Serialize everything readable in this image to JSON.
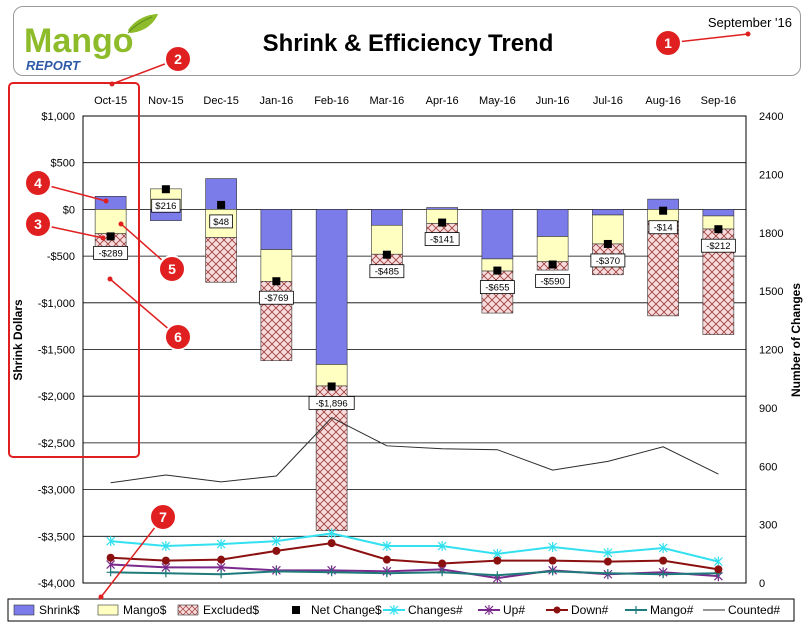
{
  "header": {
    "logo_main": "Mango",
    "logo_sub": "REPORT",
    "title": "Shrink & Efficiency Trend",
    "date": "September '16"
  },
  "colors": {
    "shrink": "#7b7bea",
    "mango": "#ffffc2",
    "excluded": "#f6dcdc",
    "excluded_hatch": "#9e3a3a",
    "changes": "#33e0f0",
    "up": "#7a2a8c",
    "down": "#8b1010",
    "mango_line": "#1f7a7a",
    "counted": "#2b2b2b",
    "callout": "#e02020",
    "grid": "#000000"
  },
  "callouts": [
    "1",
    "2",
    "3",
    "4",
    "5",
    "6",
    "7"
  ],
  "chart_data": {
    "type": "bar",
    "title": "Shrink & Efficiency Trend",
    "categories": [
      "Oct-15",
      "Nov-15",
      "Dec-15",
      "Jan-16",
      "Feb-16",
      "Mar-16",
      "Apr-16",
      "May-16",
      "Jun-16",
      "Jul-16",
      "Aug-16",
      "Sep-16"
    ],
    "ylabel": "Shrink Dollars",
    "y2label": "Number of Changes",
    "ylim": [
      -4000,
      1000
    ],
    "y2lim": [
      0,
      2400
    ],
    "yticks": [
      1000,
      500,
      0,
      -500,
      -1000,
      -1500,
      -2000,
      -2500,
      -3000,
      -3500,
      -4000
    ],
    "yticklabels": [
      "$1,000",
      "$500",
      "$0",
      "-$500",
      "-$1,000",
      "-$1,500",
      "-$2,000",
      "-$2,500",
      "-$3,000",
      "-$3,500",
      "-$4,000"
    ],
    "y2ticks": [
      2400,
      2100,
      1800,
      1500,
      1200,
      900,
      600,
      300,
      0
    ],
    "y2ticklabels": [
      "2400",
      "2100",
      "1800",
      "1500",
      "1200",
      "900",
      "600",
      "300",
      "0"
    ],
    "series": [
      {
        "name": "Shrink$",
        "kind": "bar",
        "values": [
          140,
          -120,
          330,
          -430,
          -1660,
          -170,
          20,
          -530,
          -290,
          -60,
          110,
          -70
        ]
      },
      {
        "name": "Mango$",
        "kind": "bar",
        "values": [
          -260,
          220,
          -300,
          -340,
          -230,
          -310,
          -150,
          -130,
          -270,
          -310,
          -130,
          -140
        ]
      },
      {
        "name": "Excluded$",
        "kind": "bar",
        "values": [
          -145,
          0,
          -480,
          -850,
          -1550,
          -190,
          -110,
          -450,
          -90,
          -330,
          -1010,
          -1130
        ]
      },
      {
        "name": "Net Change$",
        "kind": "marker",
        "values": [
          -289,
          216,
          48,
          -769,
          -1896,
          -485,
          -141,
          -655,
          -590,
          -370,
          -14,
          -212
        ]
      },
      {
        "name": "Changes#",
        "kind": "line",
        "values": [
          215,
          190,
          200,
          215,
          255,
          190,
          190,
          150,
          185,
          155,
          180,
          110
        ]
      },
      {
        "name": "Up#",
        "kind": "line",
        "values": [
          95,
          80,
          80,
          65,
          65,
          60,
          70,
          25,
          65,
          45,
          55,
          35
        ]
      },
      {
        "name": "Down#",
        "kind": "line",
        "values": [
          130,
          115,
          120,
          165,
          205,
          120,
          100,
          115,
          115,
          110,
          115,
          70
        ]
      },
      {
        "name": "Mango#",
        "kind": "line",
        "values": [
          55,
          50,
          45,
          60,
          55,
          50,
          55,
          40,
          60,
          50,
          45,
          50
        ]
      },
      {
        "name": "Counted#",
        "kind": "line",
        "values": [
          515,
          555,
          520,
          550,
          850,
          705,
          690,
          685,
          580,
          625,
          700,
          560
        ]
      }
    ],
    "net_labels": [
      "-$289",
      "$216",
      "$48",
      "-$769",
      "-$1,896",
      "-$485",
      "-$141",
      "-$655",
      "-$590",
      "-$370",
      "-$14",
      "-$212"
    ],
    "legend": [
      "Shrink$",
      "Mango$",
      "Excluded$",
      "Net Change$",
      "Changes#",
      "Up#",
      "Down#",
      "Mango#",
      "Counted#"
    ],
    "legend_position": "bottom"
  }
}
